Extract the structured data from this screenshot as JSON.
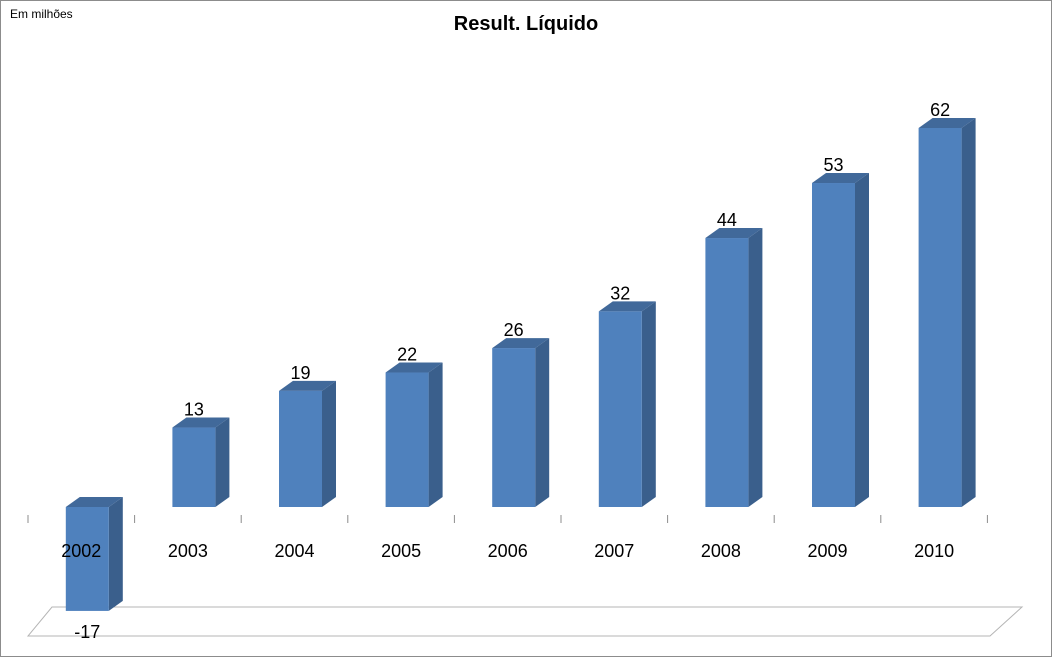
{
  "unit_label": "Em milhões",
  "chart_data": {
    "type": "bar",
    "title": "Result. Líquido",
    "xlabel": "",
    "ylabel": "",
    "categories": [
      "2002",
      "2003",
      "2004",
      "2005",
      "2006",
      "2007",
      "2008",
      "2009",
      "2010"
    ],
    "values": [
      -17,
      13,
      19,
      22,
      26,
      32,
      44,
      53,
      62
    ],
    "ylim": [
      -17,
      62
    ],
    "grid": false,
    "legend": "none",
    "colors": {
      "front": "#4f81bd",
      "side": "#3a5f8c",
      "top": "#41699a"
    }
  }
}
